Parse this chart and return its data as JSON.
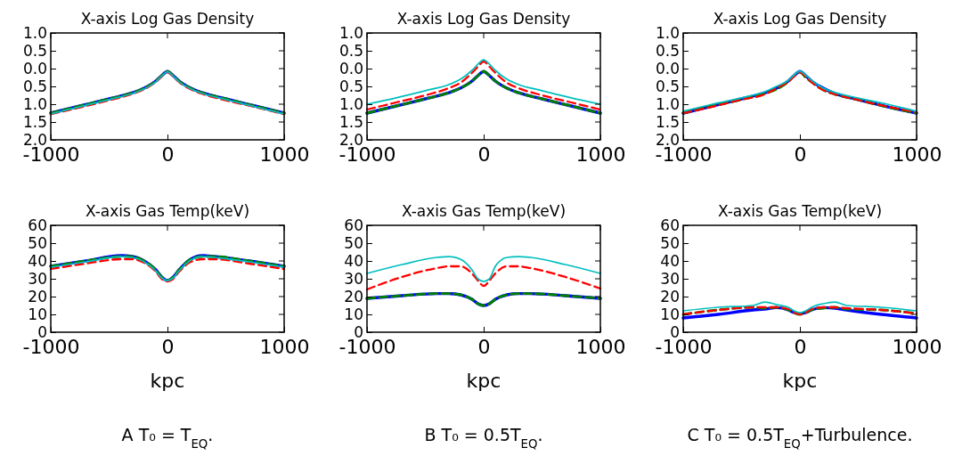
{
  "chart_data": [
    {
      "type": "line",
      "title": "X-axis Log Gas Density",
      "x": [
        -1000,
        -750,
        -500,
        -300,
        -200,
        -100,
        -50,
        0,
        50,
        100,
        200,
        300,
        500,
        750,
        1000
      ],
      "xlim": [
        -1000,
        1000
      ],
      "xticks": [
        -1000,
        0,
        1000
      ],
      "ylim": [
        -2.0,
        1.0
      ],
      "yticks": [
        {
          "value": -2.0,
          "label": "2.0"
        },
        {
          "value": -1.5,
          "label": "1.5"
        },
        {
          "value": -1.0,
          "label": "1.0"
        },
        {
          "value": -0.5,
          "label": "0.5"
        },
        {
          "value": 0,
          "label": "0.0"
        },
        {
          "value": 0.5,
          "label": "0.5"
        },
        {
          "value": 1.0,
          "label": "1.0"
        }
      ],
      "series": [
        {
          "color": "#0000ff",
          "line_style": "solid",
          "values": [
            -1.25,
            -1.05,
            -0.85,
            -0.68,
            -0.55,
            -0.35,
            -0.2,
            -0.08,
            -0.2,
            -0.35,
            -0.55,
            -0.68,
            -0.85,
            -1.05,
            -1.25
          ]
        },
        {
          "color": "#008000",
          "line_style": "dashed",
          "values": [
            -1.25,
            -1.05,
            -0.85,
            -0.68,
            -0.55,
            -0.35,
            -0.2,
            -0.08,
            -0.2,
            -0.35,
            -0.55,
            -0.68,
            -0.85,
            -1.05,
            -1.25
          ]
        },
        {
          "color": "#ff0000",
          "line_style": "dashed",
          "values": [
            -1.28,
            -1.09,
            -0.89,
            -0.71,
            -0.58,
            -0.37,
            -0.22,
            -0.1,
            -0.22,
            -0.38,
            -0.58,
            -0.71,
            -0.89,
            -1.08,
            -1.28
          ]
        },
        {
          "color": "#00bfbf",
          "line_style": "solid",
          "values": [
            -1.27,
            -1.07,
            -0.87,
            -0.7,
            -0.57,
            -0.37,
            -0.21,
            -0.09,
            -0.21,
            -0.37,
            -0.57,
            -0.7,
            -0.87,
            -1.07,
            -1.27
          ]
        }
      ]
    },
    {
      "type": "line",
      "title": "X-axis Log Gas Density",
      "x": [
        -1000,
        -750,
        -500,
        -300,
        -200,
        -100,
        -50,
        0,
        50,
        100,
        200,
        300,
        500,
        750,
        1000
      ],
      "xlim": [
        -1000,
        1000
      ],
      "xticks": [
        -1000,
        0,
        1000
      ],
      "ylim": [
        -2.0,
        1.0
      ],
      "yticks": [
        {
          "value": -2.0,
          "label": "2.0"
        },
        {
          "value": -1.5,
          "label": "1.5"
        },
        {
          "value": -1.0,
          "label": "1.0"
        },
        {
          "value": -0.5,
          "label": "0.5"
        },
        {
          "value": 0,
          "label": "0.0"
        },
        {
          "value": 0.5,
          "label": "0.5"
        },
        {
          "value": 1.0,
          "label": "1.0"
        }
      ],
      "series": [
        {
          "color": "#0000ff",
          "line_style": "solid",
          "values": [
            -1.25,
            -1.05,
            -0.85,
            -0.68,
            -0.55,
            -0.35,
            -0.2,
            -0.08,
            -0.2,
            -0.35,
            -0.55,
            -0.68,
            -0.85,
            -1.05,
            -1.25
          ]
        },
        {
          "color": "#008000",
          "line_style": "dashed",
          "values": [
            -1.25,
            -1.05,
            -0.85,
            -0.68,
            -0.55,
            -0.35,
            -0.2,
            -0.08,
            -0.2,
            -0.35,
            -0.55,
            -0.68,
            -0.85,
            -1.05,
            -1.25
          ]
        },
        {
          "color": "#ff0000",
          "line_style": "dashed",
          "values": [
            -1.15,
            -0.95,
            -0.75,
            -0.55,
            -0.4,
            -0.12,
            0.05,
            0.2,
            0.05,
            -0.12,
            -0.4,
            -0.55,
            -0.75,
            -0.95,
            -1.15
          ]
        },
        {
          "color": "#00bfbf",
          "line_style": "solid",
          "values": [
            -1.0,
            -0.82,
            -0.62,
            -0.45,
            -0.3,
            -0.05,
            0.12,
            0.25,
            0.12,
            -0.05,
            -0.3,
            -0.45,
            -0.62,
            -0.82,
            -1.0
          ]
        }
      ]
    },
    {
      "type": "line",
      "title": "X-axis Log Gas Density",
      "x": [
        -1000,
        -750,
        -500,
        -300,
        -200,
        -100,
        -50,
        0,
        50,
        100,
        200,
        300,
        500,
        750,
        1000
      ],
      "xlim": [
        -1000,
        1000
      ],
      "xticks": [
        -1000,
        0,
        1000
      ],
      "ylim": [
        -2.0,
        1.0
      ],
      "yticks": [
        {
          "value": -2.0,
          "label": "2.0"
        },
        {
          "value": -1.5,
          "label": "1.5"
        },
        {
          "value": -1.0,
          "label": "1.0"
        },
        {
          "value": -0.5,
          "label": "0.5"
        },
        {
          "value": 0,
          "label": "0.0"
        },
        {
          "value": 0.5,
          "label": "0.5"
        },
        {
          "value": 1.0,
          "label": "1.0"
        }
      ],
      "series": [
        {
          "color": "#0000ff",
          "line_style": "solid",
          "values": [
            -1.25,
            -1.05,
            -0.85,
            -0.68,
            -0.55,
            -0.35,
            -0.2,
            -0.08,
            -0.2,
            -0.35,
            -0.55,
            -0.7,
            -0.87,
            -1.07,
            -1.25
          ]
        },
        {
          "color": "#008000",
          "line_style": "dashed",
          "values": [
            -1.25,
            -1.05,
            -0.87,
            -0.7,
            -0.58,
            -0.37,
            -0.2,
            -0.1,
            -0.25,
            -0.38,
            -0.6,
            -0.72,
            -0.88,
            -1.08,
            -1.25
          ]
        },
        {
          "color": "#ff0000",
          "line_style": "dashed",
          "values": [
            -1.25,
            -1.07,
            -0.87,
            -0.72,
            -0.55,
            -0.37,
            -0.22,
            -0.1,
            -0.22,
            -0.38,
            -0.6,
            -0.72,
            -0.88,
            -1.07,
            -1.22
          ]
        },
        {
          "color": "#00bfbf",
          "line_style": "solid",
          "values": [
            -1.2,
            -1.0,
            -0.82,
            -0.65,
            -0.5,
            -0.33,
            -0.18,
            -0.07,
            -0.18,
            -0.33,
            -0.55,
            -0.67,
            -0.83,
            -1.0,
            -1.2
          ]
        }
      ]
    },
    {
      "type": "line",
      "title": "X-axis Gas Temp(keV)",
      "xlabel": "kpc",
      "annotations": [
        "A T₀ = T$_{EQ}$."
      ],
      "x": [
        -1000,
        -700,
        -400,
        -300,
        -200,
        -100,
        -50,
        0,
        50,
        100,
        200,
        300,
        400,
        700,
        1000
      ],
      "xlim": [
        -1000,
        1000
      ],
      "xticks": [
        -1000,
        0,
        1000
      ],
      "ylim": [
        0,
        60
      ],
      "yticks": [
        0,
        10,
        20,
        30,
        40,
        50,
        60
      ],
      "series": [
        {
          "color": "#0000ff",
          "line_style": "solid",
          "values": [
            37,
            40,
            43,
            42.5,
            40,
            35,
            31,
            29,
            31,
            35,
            41,
            43,
            42.5,
            40,
            37
          ]
        },
        {
          "color": "#008000",
          "line_style": "dashed",
          "values": [
            37,
            40,
            42.5,
            42.5,
            40,
            35,
            31,
            29,
            31,
            35,
            41,
            42.5,
            42.5,
            40,
            37
          ]
        },
        {
          "color": "#ff0000",
          "line_style": "dashed",
          "values": [
            35.5,
            38.5,
            41,
            41,
            39,
            34,
            30,
            28.5,
            30,
            34,
            39.5,
            41,
            41,
            38.5,
            35.5
          ]
        },
        {
          "color": "#00bfbf",
          "line_style": "solid",
          "values": [
            36.5,
            39.5,
            42.5,
            42,
            39.5,
            34.5,
            30.5,
            29,
            30.5,
            34.5,
            40.5,
            42.5,
            42,
            39.5,
            36.5
          ]
        }
      ]
    },
    {
      "type": "line",
      "title": "X-axis Gas Temp(keV)",
      "xlabel": "kpc",
      "annotations": [
        "B T₀ = 0.5T$_{EQ}$."
      ],
      "x": [
        -1000,
        -700,
        -400,
        -300,
        -200,
        -100,
        -50,
        0,
        50,
        100,
        200,
        300,
        400,
        700,
        1000
      ],
      "xlim": [
        -1000,
        1000
      ],
      "xticks": [
        -1000,
        0,
        1000
      ],
      "ylim": [
        0,
        60
      ],
      "yticks": [
        0,
        10,
        20,
        30,
        40,
        50,
        60
      ],
      "series": [
        {
          "color": "#0000ff",
          "line_style": "solid",
          "values": [
            19,
            20.5,
            21.7,
            21.7,
            21,
            18.5,
            16,
            15,
            16,
            18.5,
            21,
            21.7,
            21.7,
            20.5,
            19
          ]
        },
        {
          "color": "#008000",
          "line_style": "dashed",
          "values": [
            19,
            20.5,
            21.7,
            21.7,
            21,
            18.5,
            16,
            15,
            16,
            18.5,
            21,
            21.7,
            21.7,
            20.5,
            19
          ]
        },
        {
          "color": "#ff0000",
          "line_style": "dashed",
          "values": [
            24,
            31,
            36,
            37,
            37,
            33,
            29,
            26,
            29,
            33,
            37,
            37,
            36,
            31,
            24.5
          ]
        },
        {
          "color": "#00bfbf",
          "line_style": "solid",
          "values": [
            33,
            38,
            42,
            42.5,
            41,
            35,
            30,
            28.5,
            30,
            37,
            42,
            42.5,
            42,
            38,
            33
          ]
        }
      ]
    },
    {
      "type": "line",
      "title": "X-axis Gas Temp(keV)",
      "xlabel": "kpc",
      "annotations": [
        "C T₀ = 0.5T$_{EQ}$+Turbulence."
      ],
      "x": [
        -1000,
        -700,
        -400,
        -300,
        -200,
        -100,
        -50,
        0,
        50,
        100,
        200,
        300,
        400,
        700,
        1000
      ],
      "xlim": [
        -1000,
        1000
      ],
      "xticks": [
        -1000,
        0,
        1000
      ],
      "ylim": [
        0,
        60
      ],
      "yticks": [
        0,
        10,
        20,
        30,
        40,
        50,
        60
      ],
      "series": [
        {
          "color": "#0000ff",
          "line_style": "solid",
          "values": [
            8,
            10,
            12.5,
            13,
            13.8,
            12.5,
            11,
            10.3,
            11,
            12.5,
            13.8,
            13.5,
            12.5,
            10,
            8
          ]
        },
        {
          "color": "#008000",
          "line_style": "dashed",
          "values": [
            10,
            12.5,
            14,
            13.5,
            14,
            12.5,
            11,
            10,
            11,
            12.5,
            13.5,
            14,
            13,
            12.5,
            10.5
          ]
        },
        {
          "color": "#ff0000",
          "line_style": "dashed",
          "values": [
            10,
            12.5,
            14,
            14,
            14,
            13,
            11,
            10,
            11,
            13,
            14,
            14,
            13.5,
            12.5,
            10.5
          ]
        },
        {
          "color": "#00bfbf",
          "line_style": "solid",
          "values": [
            12,
            14,
            15,
            17,
            15.5,
            14,
            12,
            11,
            12,
            14,
            16,
            17,
            15,
            14,
            12
          ]
        }
      ]
    }
  ]
}
